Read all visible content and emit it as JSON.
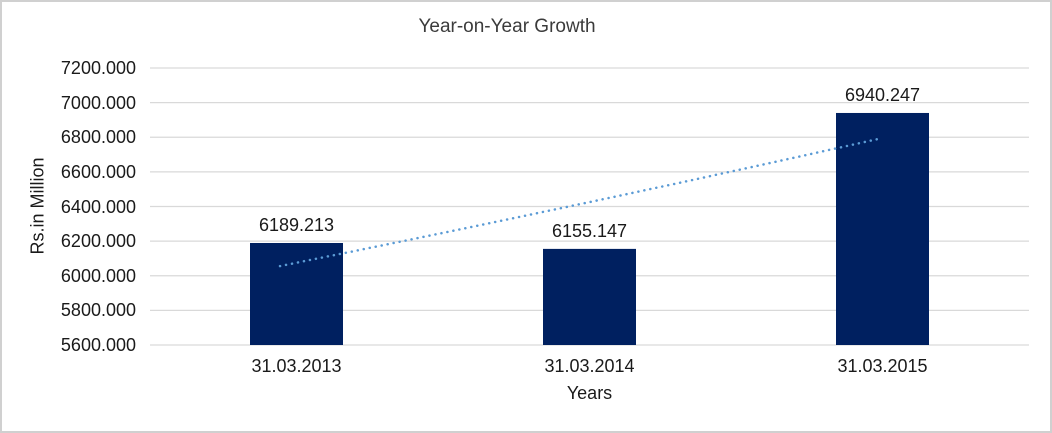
{
  "frame": {
    "background": "#ffffff",
    "border_color": "#d0d0d0"
  },
  "chart_data": {
    "type": "bar",
    "title": "Year-on-Year Growth",
    "categories": [
      "31.03.2013",
      "31.03.2014",
      "31.03.2015"
    ],
    "values": [
      6189.213,
      6155.147,
      6940.247
    ],
    "data_labels": [
      "6189.213",
      "6155.147",
      "6940.247"
    ],
    "xlabel": "Years",
    "ylabel": "Rs.in Million",
    "ylim": [
      5600,
      7200
    ],
    "ytick_step": 200,
    "ytick_labels": [
      "5600.000",
      "5800.000",
      "6000.000",
      "6200.000",
      "6400.000",
      "6600.000",
      "6800.000",
      "7000.000",
      "7200.000"
    ],
    "grid": true,
    "legend": "none",
    "bar_color": "#002060",
    "gridline_color": "#d9d9d9",
    "label_color": "#1a1a1a",
    "title_color": "#3b3b3b",
    "trendline": {
      "type": "exponential",
      "line_style": "dotted",
      "color": "#5b9bd5",
      "start_value": 6056,
      "end_value": 6790
    }
  }
}
